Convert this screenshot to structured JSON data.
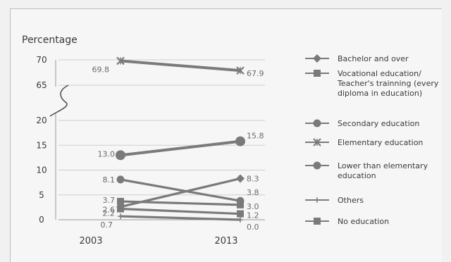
{
  "chart_data": {
    "type": "line",
    "ylabel": "Percentage",
    "x": [
      "2003",
      "2013"
    ],
    "yticks_lower": [
      "0",
      "5",
      "10",
      "15",
      "20"
    ],
    "yticks_upper": [
      "65",
      "70"
    ],
    "ylim_lower": [
      0,
      20
    ],
    "ylim_upper": [
      65,
      70
    ],
    "axis_break": "between 20 and 65",
    "grid": true,
    "legend_position": "right",
    "series": [
      {
        "name": "Bachelor and over",
        "marker": "diamond",
        "values": [
          2.6,
          8.3
        ],
        "labels": [
          "2.6",
          "8.3"
        ]
      },
      {
        "name": "Vocational education/ Teacher's trainning (every diploma in education)",
        "marker": "square",
        "values": [
          3.7,
          3.0
        ],
        "labels": [
          "3.7",
          "3.0"
        ]
      },
      {
        "name": "Secondary education",
        "marker": "circle-large",
        "values": [
          13.0,
          15.8
        ],
        "labels": [
          "13.0",
          "15.8"
        ]
      },
      {
        "name": "Elementary education",
        "marker": "x",
        "values": [
          69.8,
          67.9
        ],
        "labels": [
          "69.8",
          "67.9"
        ]
      },
      {
        "name": "Lower than elementary education",
        "marker": "circle",
        "values": [
          8.1,
          3.8
        ],
        "labels": [
          "8.1",
          "3.8"
        ]
      },
      {
        "name": "Others",
        "marker": "plus",
        "values": [
          0.7,
          0.0
        ],
        "labels": [
          "0.7",
          "0.0"
        ]
      },
      {
        "name": "No education",
        "marker": "square",
        "values": [
          2.2,
          1.2
        ],
        "labels": [
          "2.2",
          "1.2"
        ]
      }
    ],
    "legend_lines": [
      [
        "Bachelor and over"
      ],
      [
        "Vocational education/",
        "Teacher's trainning (every",
        "diploma in education)"
      ],
      [
        "Secondary education"
      ],
      [
        "Elementary education"
      ],
      [
        "Lower than elementary",
        "education"
      ],
      [
        "Others"
      ],
      [
        "No education"
      ]
    ],
    "colors": {
      "line": "#7a7a7a",
      "text": "#3a3a3a",
      "label": "#6a6a6a",
      "grid": "#cfcfcf"
    }
  }
}
